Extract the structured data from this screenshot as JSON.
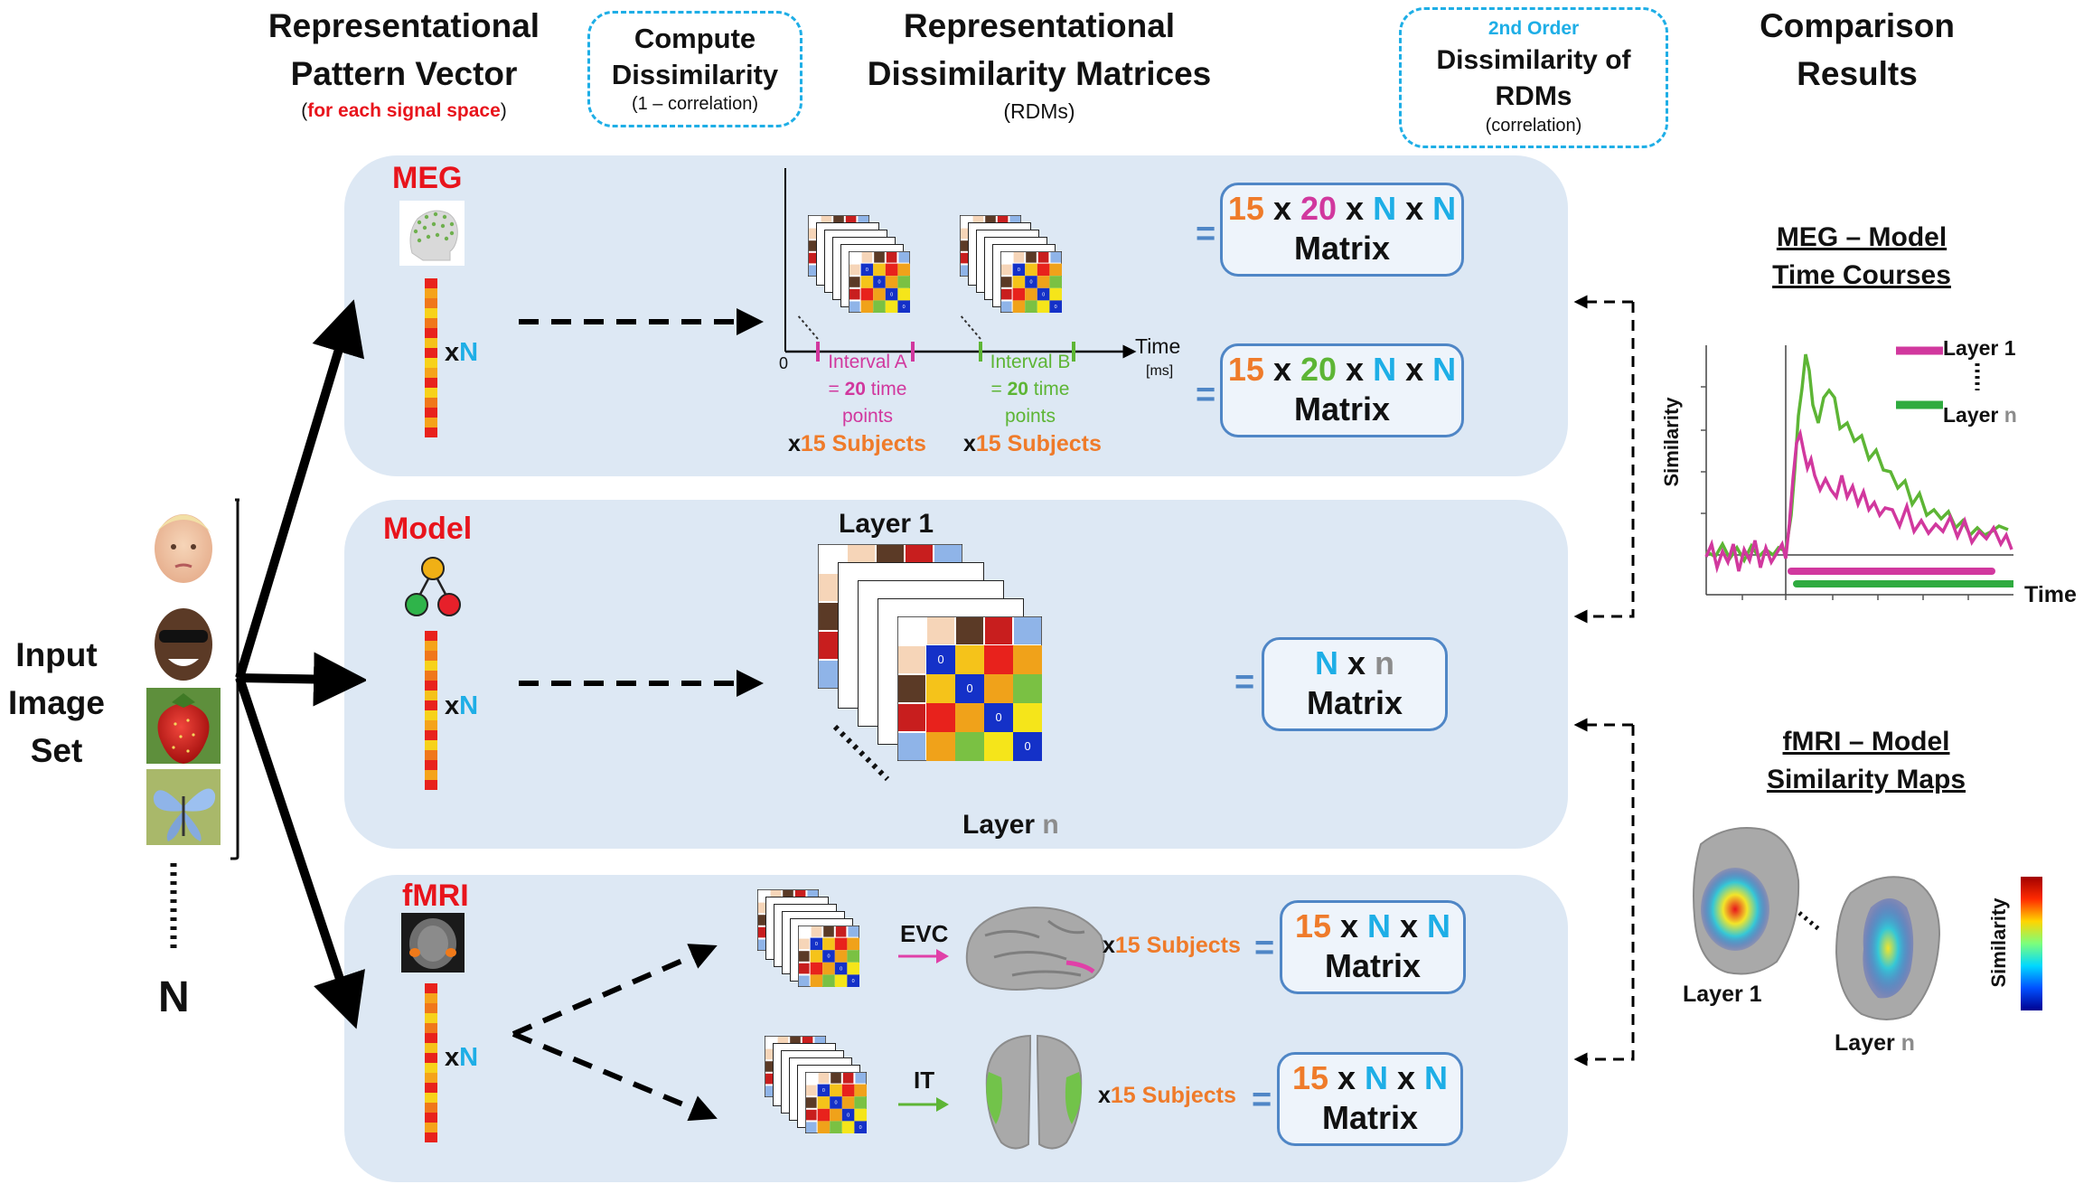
{
  "headers": {
    "pattern_vector": {
      "line1": "Representational",
      "line2": "Pattern Vector",
      "note_open": "(",
      "note": "for each signal space",
      "note_close": ")"
    },
    "compute": {
      "line1": "Compute",
      "line2": "Dissimilarity",
      "line3": "(1 – correlation)"
    },
    "rdms": {
      "line1": "Representational",
      "line2": "Dissimilarity Matrices",
      "line3": "(RDMs)"
    },
    "second_order": {
      "line1": "2nd Order",
      "line2": "Dissimilarity of",
      "line3": "RDMs",
      "line4": "(correlation)"
    },
    "comparison": {
      "line1": "Comparison",
      "line2": "Results"
    }
  },
  "input": {
    "line1": "Input",
    "line2": "Image",
    "line3": "Set",
    "count": "N"
  },
  "meg": {
    "label": "MEG",
    "times": "x",
    "n": "N",
    "axis_zero": "0",
    "axis_time": "Time",
    "axis_unit": "[ms]",
    "interval_a": {
      "l1": "Interval A",
      "eq": "= ",
      "num": "20",
      "l2": " time",
      "l3": "points"
    },
    "interval_b": {
      "l1": "Interval B",
      "eq": "= ",
      "num": "20",
      "l2": " time",
      "l3": "points"
    },
    "subjects_x": "x",
    "subjects": "15 Subjects",
    "matrix1": {
      "a": "15",
      "x1": " x ",
      "b": "20",
      "x2": " x ",
      "c": "N",
      "x3": " x ",
      "d": "N",
      "word": "Matrix"
    },
    "matrix2": {
      "a": "15",
      "x1": " x ",
      "b": "20",
      "x2": " x ",
      "c": "N",
      "x3": " x ",
      "d": "N",
      "word": "Matrix"
    }
  },
  "model": {
    "label": "Model",
    "times": "x",
    "n": "N",
    "layer1": "Layer 1",
    "layern_word": "Layer ",
    "layern_n": "n",
    "matrix": {
      "a": "N",
      "x1": " x ",
      "b": "n",
      "word": "Matrix"
    }
  },
  "fmri": {
    "label": "fMRI",
    "times": "x",
    "n": "N",
    "evc": "EVC",
    "it": "IT",
    "subjects_x": "x",
    "subjects": "15 Subjects",
    "matrix1": {
      "a": "15",
      "x1": " x ",
      "b": "N",
      "x2": " x ",
      "c": "N",
      "word": "Matrix"
    },
    "matrix2": {
      "a": "15",
      "x1": " x ",
      "b": "N",
      "x2": " x ",
      "c": "N",
      "word": "Matrix"
    }
  },
  "equals": "=",
  "rdm_zero": "0",
  "results": {
    "meg_title1": "MEG – Model",
    "meg_title2": "Time Courses",
    "similarity": "Similarity",
    "time": "Time",
    "legend1": "Layer 1",
    "legendn_word": "Layer ",
    "legendn_n": "n",
    "fmri_title1": "fMRI – Model",
    "fmri_title2": "Similarity Maps",
    "map_layer1": "Layer 1",
    "map_layern_word": "Layer ",
    "map_layern_n": "n",
    "colorbar_label": "Similarity"
  },
  "colors": {
    "panel": "#dde8f4",
    "box_border": "#4f86c6",
    "accent_orange": "#ef7b2a",
    "accent_magenta": "#d1389e",
    "accent_green": "#5db535",
    "accent_cyan": "#1eaee6",
    "accent_red": "#e8141c"
  }
}
